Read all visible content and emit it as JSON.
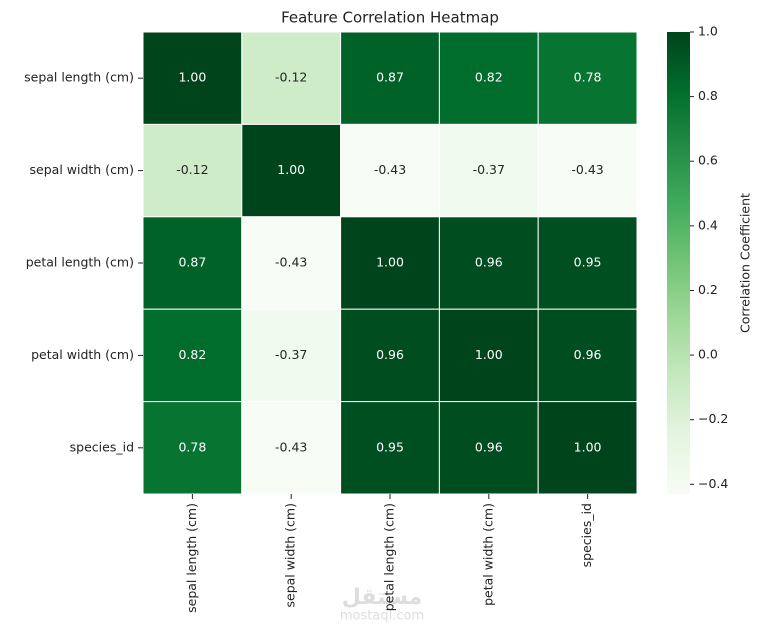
{
  "chart_data": {
    "type": "heatmap",
    "title": "Feature Correlation Heatmap",
    "x_categories": [
      "sepal length (cm)",
      "sepal width (cm)",
      "petal length (cm)",
      "petal width (cm)",
      "species_id"
    ],
    "y_categories": [
      "sepal length (cm)",
      "sepal width (cm)",
      "petal length (cm)",
      "petal width (cm)",
      "species_id"
    ],
    "values": [
      [
        1.0,
        -0.12,
        0.87,
        0.82,
        0.78
      ],
      [
        -0.12,
        1.0,
        -0.43,
        -0.37,
        -0.43
      ],
      [
        0.87,
        -0.43,
        1.0,
        0.96,
        0.95
      ],
      [
        0.82,
        -0.37,
        0.96,
        1.0,
        0.96
      ],
      [
        0.78,
        -0.43,
        0.95,
        0.96,
        1.0
      ]
    ],
    "value_labels": [
      [
        "1.00",
        "-0.12",
        "0.87",
        "0.82",
        "0.78"
      ],
      [
        "-0.12",
        "1.00",
        "-0.43",
        "-0.37",
        "-0.43"
      ],
      [
        "0.87",
        "-0.43",
        "1.00",
        "0.96",
        "0.95"
      ],
      [
        "0.82",
        "-0.37",
        "0.96",
        "1.00",
        "0.96"
      ],
      [
        "0.78",
        "-0.43",
        "0.95",
        "0.96",
        "1.00"
      ]
    ],
    "colormap": [
      "#f7fcf5",
      "#e5f5e0",
      "#c7e9c0",
      "#a1d99b",
      "#74c476",
      "#41ab5d",
      "#238b45",
      "#006d2c",
      "#00441b"
    ],
    "clim": [
      -0.43,
      1.0
    ],
    "cticks": [
      {
        "value": -0.4,
        "label": "−0.4"
      },
      {
        "value": -0.2,
        "label": "−0.2"
      },
      {
        "value": 0.0,
        "label": "0.0"
      },
      0.2,
      0.4,
      0.6,
      0.8,
      {
        "value": 1.0,
        "label": "1.0"
      }
    ],
    "colorbar_label": "Correlation Coefficient",
    "watermark": [
      "مستقل",
      "mostaql.com"
    ]
  }
}
